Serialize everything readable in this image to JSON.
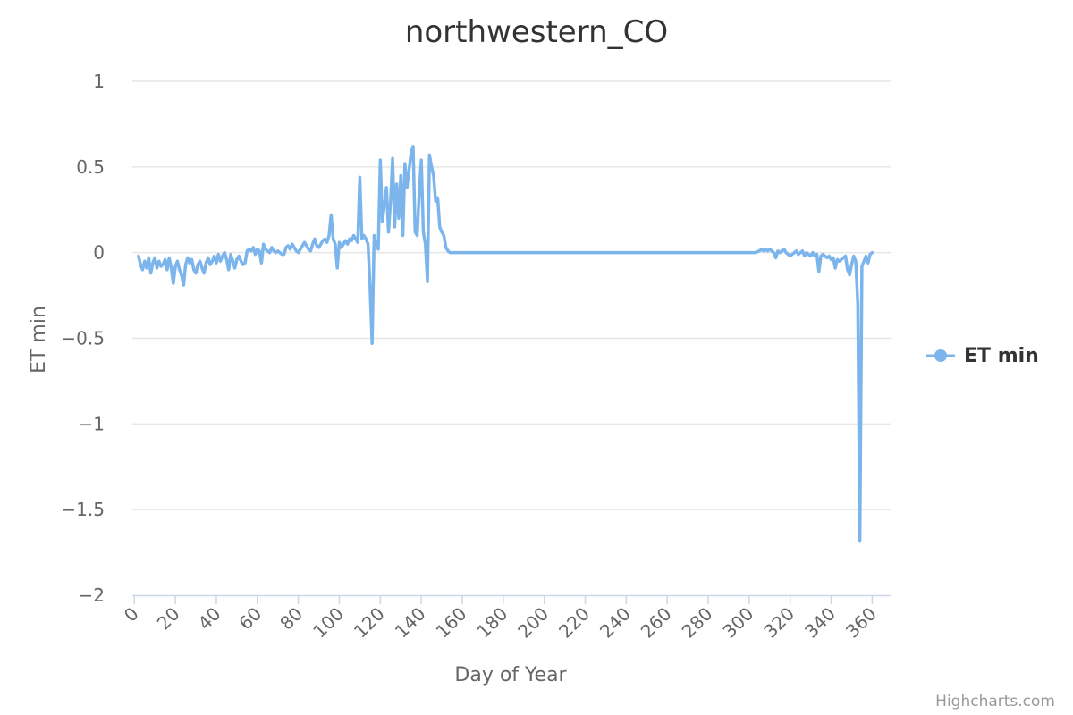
{
  "chart_data": {
    "type": "line",
    "title": "northwestern_CO",
    "xlabel": "Day of Year",
    "ylabel": "ET min",
    "xlim": [
      -1,
      369
    ],
    "ylim": [
      -2,
      1
    ],
    "x_ticks": [
      0,
      20,
      40,
      60,
      80,
      100,
      120,
      140,
      160,
      180,
      200,
      220,
      240,
      260,
      280,
      300,
      320,
      340,
      360
    ],
    "y_ticks": [
      1,
      0.5,
      0,
      -0.5,
      -1,
      -1.5,
      -2
    ],
    "y_tick_labels": [
      "1",
      "0.5",
      "0",
      "−0.5",
      "−1",
      "−1.5",
      "−2"
    ],
    "grid": true,
    "legend_position": "right",
    "series": [
      {
        "name": "ET min",
        "color": "#7cb5ec",
        "points": [
          [
            2,
            -0.02
          ],
          [
            3,
            -0.07
          ],
          [
            4,
            -0.1
          ],
          [
            5,
            -0.05
          ],
          [
            6,
            -0.09
          ],
          [
            7,
            -0.03
          ],
          [
            8,
            -0.12
          ],
          [
            9,
            -0.06
          ],
          [
            10,
            -0.03
          ],
          [
            11,
            -0.09
          ],
          [
            12,
            -0.05
          ],
          [
            13,
            -0.08
          ],
          [
            14,
            -0.07
          ],
          [
            15,
            -0.04
          ],
          [
            16,
            -0.1
          ],
          [
            17,
            -0.03
          ],
          [
            18,
            -0.09
          ],
          [
            19,
            -0.18
          ],
          [
            20,
            -0.08
          ],
          [
            21,
            -0.05
          ],
          [
            22,
            -0.1
          ],
          [
            23,
            -0.13
          ],
          [
            24,
            -0.19
          ],
          [
            25,
            -0.07
          ],
          [
            26,
            -0.03
          ],
          [
            27,
            -0.06
          ],
          [
            28,
            -0.04
          ],
          [
            29,
            -0.1
          ],
          [
            30,
            -0.12
          ],
          [
            31,
            -0.07
          ],
          [
            32,
            -0.05
          ],
          [
            33,
            -0.09
          ],
          [
            34,
            -0.12
          ],
          [
            35,
            -0.06
          ],
          [
            36,
            -0.03
          ],
          [
            37,
            -0.07
          ],
          [
            38,
            -0.05
          ],
          [
            39,
            -0.02
          ],
          [
            40,
            -0.06
          ],
          [
            41,
            -0.01
          ],
          [
            42,
            -0.05
          ],
          [
            43,
            -0.02
          ],
          [
            44,
            0.0
          ],
          [
            45,
            -0.04
          ],
          [
            46,
            -0.1
          ],
          [
            47,
            -0.01
          ],
          [
            48,
            -0.05
          ],
          [
            49,
            -0.09
          ],
          [
            50,
            -0.04
          ],
          [
            51,
            -0.02
          ],
          [
            52,
            -0.05
          ],
          [
            53,
            -0.07
          ],
          [
            54,
            -0.06
          ],
          [
            55,
            0.01
          ],
          [
            56,
            0.02
          ],
          [
            57,
            0.01
          ],
          [
            58,
            0.03
          ],
          [
            59,
            -0.01
          ],
          [
            60,
            0.02
          ],
          [
            61,
            0.01
          ],
          [
            62,
            -0.06
          ],
          [
            63,
            0.05
          ],
          [
            64,
            0.02
          ],
          [
            65,
            0.01
          ],
          [
            66,
            0.0
          ],
          [
            67,
            0.03
          ],
          [
            68,
            0.01
          ],
          [
            69,
            0.0
          ],
          [
            70,
            0.01
          ],
          [
            71,
            0.0
          ],
          [
            72,
            -0.01
          ],
          [
            73,
            -0.01
          ],
          [
            74,
            0.03
          ],
          [
            75,
            0.04
          ],
          [
            76,
            0.02
          ],
          [
            77,
            0.05
          ],
          [
            78,
            0.03
          ],
          [
            79,
            0.01
          ],
          [
            80,
            0.0
          ],
          [
            81,
            0.02
          ],
          [
            82,
            0.04
          ],
          [
            83,
            0.06
          ],
          [
            84,
            0.04
          ],
          [
            85,
            0.02
          ],
          [
            86,
            0.01
          ],
          [
            87,
            0.05
          ],
          [
            88,
            0.08
          ],
          [
            89,
            0.04
          ],
          [
            90,
            0.03
          ],
          [
            91,
            0.05
          ],
          [
            92,
            0.07
          ],
          [
            93,
            0.08
          ],
          [
            94,
            0.06
          ],
          [
            95,
            0.1
          ],
          [
            96,
            0.22
          ],
          [
            97,
            0.08
          ],
          [
            98,
            0.05
          ],
          [
            99,
            -0.09
          ],
          [
            100,
            0.06
          ],
          [
            101,
            0.03
          ],
          [
            102,
            0.05
          ],
          [
            103,
            0.07
          ],
          [
            104,
            0.05
          ],
          [
            105,
            0.08
          ],
          [
            106,
            0.07
          ],
          [
            107,
            0.1
          ],
          [
            108,
            0.08
          ],
          [
            109,
            0.06
          ],
          [
            110,
            0.44
          ],
          [
            111,
            0.08
          ],
          [
            112,
            0.1
          ],
          [
            113,
            0.08
          ],
          [
            114,
            0.05
          ],
          [
            115,
            -0.2
          ],
          [
            116,
            -0.53
          ],
          [
            117,
            0.1
          ],
          [
            118,
            0.05
          ],
          [
            119,
            0.02
          ],
          [
            120,
            0.54
          ],
          [
            121,
            0.18
          ],
          [
            122,
            0.28
          ],
          [
            123,
            0.38
          ],
          [
            124,
            0.12
          ],
          [
            125,
            0.3
          ],
          [
            126,
            0.55
          ],
          [
            127,
            0.15
          ],
          [
            128,
            0.4
          ],
          [
            129,
            0.2
          ],
          [
            130,
            0.45
          ],
          [
            131,
            0.1
          ],
          [
            132,
            0.52
          ],
          [
            133,
            0.38
          ],
          [
            134,
            0.48
          ],
          [
            135,
            0.58
          ],
          [
            136,
            0.62
          ],
          [
            137,
            0.12
          ],
          [
            138,
            0.1
          ],
          [
            139,
            0.35
          ],
          [
            140,
            0.54
          ],
          [
            141,
            0.12
          ],
          [
            142,
            0.05
          ],
          [
            143,
            -0.17
          ],
          [
            144,
            0.57
          ],
          [
            145,
            0.5
          ],
          [
            146,
            0.45
          ],
          [
            147,
            0.3
          ],
          [
            148,
            0.32
          ],
          [
            149,
            0.15
          ],
          [
            150,
            0.12
          ],
          [
            151,
            0.1
          ],
          [
            152,
            0.03
          ],
          [
            153,
            0.01
          ],
          [
            154,
            0.0
          ],
          [
            296,
            0.0
          ],
          [
            300,
            0.0
          ],
          [
            303,
            0.0
          ],
          [
            305,
            0.01
          ],
          [
            306,
            0.02
          ],
          [
            307,
            0.01
          ],
          [
            308,
            0.02
          ],
          [
            309,
            0.01
          ],
          [
            310,
            0.02
          ],
          [
            311,
            0.01
          ],
          [
            312,
            0.0
          ],
          [
            313,
            -0.03
          ],
          [
            314,
            0.01
          ],
          [
            315,
            0.0
          ],
          [
            316,
            0.01
          ],
          [
            317,
            0.02
          ],
          [
            318,
            0.0
          ],
          [
            319,
            -0.01
          ],
          [
            320,
            -0.02
          ],
          [
            321,
            -0.01
          ],
          [
            322,
            0.0
          ],
          [
            323,
            0.01
          ],
          [
            324,
            -0.01
          ],
          [
            325,
            0.0
          ],
          [
            326,
            0.01
          ],
          [
            327,
            -0.02
          ],
          [
            328,
            0.0
          ],
          [
            329,
            -0.01
          ],
          [
            330,
            -0.02
          ],
          [
            331,
            0.0
          ],
          [
            332,
            -0.02
          ],
          [
            333,
            -0.01
          ],
          [
            334,
            -0.11
          ],
          [
            335,
            -0.02
          ],
          [
            336,
            -0.01
          ],
          [
            337,
            -0.02
          ],
          [
            338,
            -0.03
          ],
          [
            339,
            -0.02
          ],
          [
            340,
            -0.04
          ],
          [
            341,
            -0.03
          ],
          [
            342,
            -0.09
          ],
          [
            343,
            -0.04
          ],
          [
            344,
            -0.05
          ],
          [
            345,
            -0.04
          ],
          [
            346,
            -0.03
          ],
          [
            347,
            -0.02
          ],
          [
            348,
            -0.1
          ],
          [
            349,
            -0.13
          ],
          [
            350,
            -0.07
          ],
          [
            351,
            -0.02
          ],
          [
            352,
            -0.05
          ],
          [
            353,
            -0.3
          ],
          [
            354,
            -1.68
          ],
          [
            355,
            -0.08
          ],
          [
            356,
            -0.05
          ],
          [
            357,
            -0.02
          ],
          [
            358,
            -0.06
          ],
          [
            359,
            -0.01
          ],
          [
            360,
            0.0
          ]
        ]
      }
    ],
    "credits": "Highcharts.com"
  }
}
